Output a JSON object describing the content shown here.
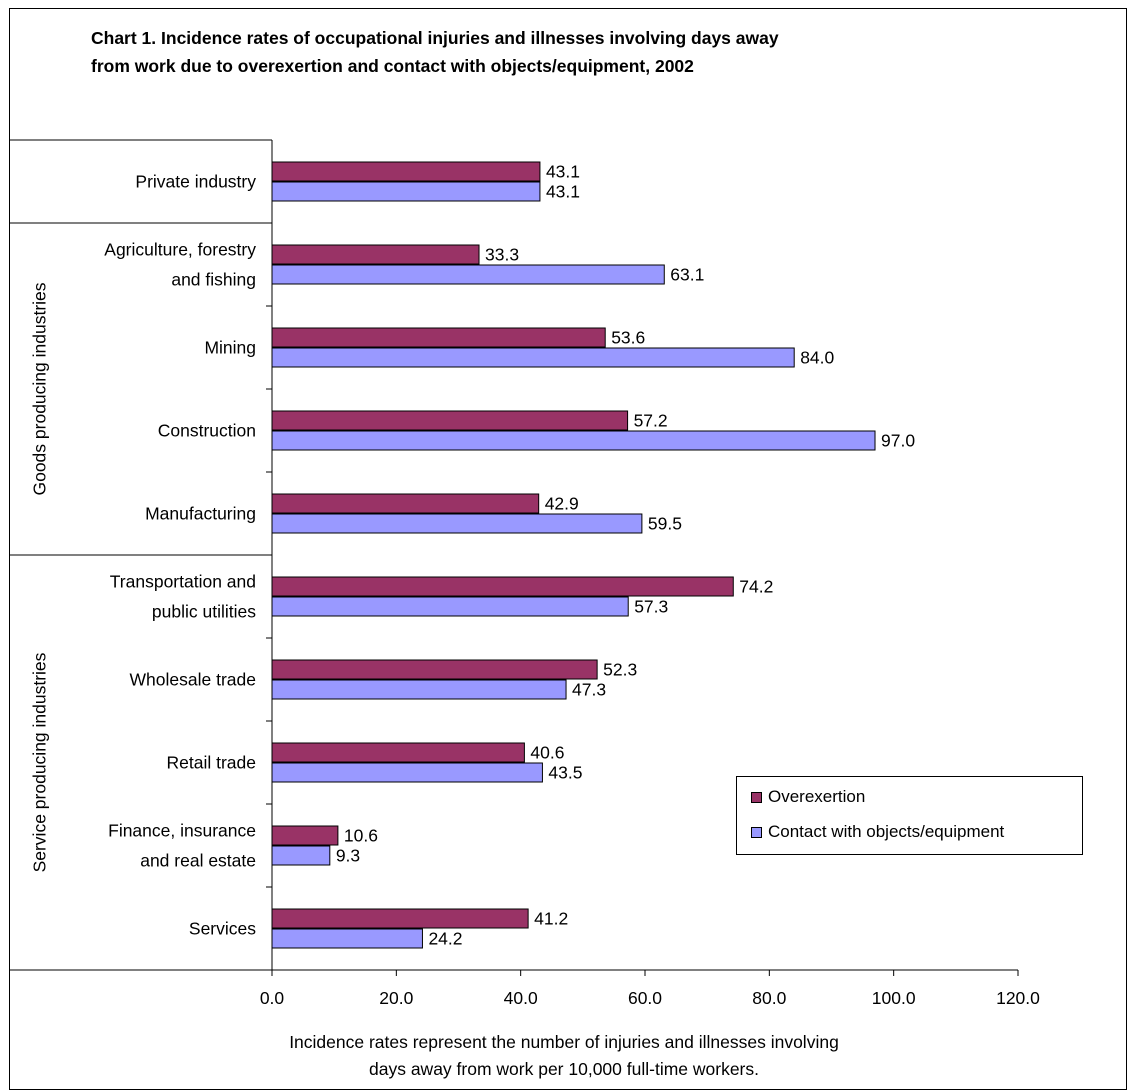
{
  "chart_data": {
    "type": "bar",
    "orientation": "horizontal",
    "title_line1": "Chart 1. Incidence rates of occupational injuries and illnesses involving days away",
    "title_line2": "from work due to overexertion and contact with objects/equipment, 2002",
    "categories": [
      "Private industry",
      "Agriculture, forestry and fishing",
      "Mining",
      "Construction",
      "Manufacturing",
      "Transportation and public utilities",
      "Wholesale trade",
      "Retail trade",
      "Finance, insurance and real estate",
      "Services"
    ],
    "category_label_lines": [
      [
        "Private industry"
      ],
      [
        "Agriculture, forestry",
        "and fishing"
      ],
      [
        "Mining"
      ],
      [
        "Construction"
      ],
      [
        "Manufacturing"
      ],
      [
        "Transportation and",
        "public utilities"
      ],
      [
        "Wholesale trade"
      ],
      [
        "Retail trade"
      ],
      [
        "Finance, insurance",
        "and real estate"
      ],
      [
        "Services"
      ]
    ],
    "groups": [
      {
        "label": "Goods producing industries",
        "categories": [
          1,
          4
        ]
      },
      {
        "label": "Service producing industries",
        "categories": [
          5,
          9
        ]
      }
    ],
    "series": [
      {
        "name": "Overexertion",
        "color": "#993366",
        "values": [
          43.1,
          33.3,
          53.6,
          57.2,
          42.9,
          74.2,
          52.3,
          40.6,
          10.6,
          41.2
        ]
      },
      {
        "name": "Contact with objects/equipment",
        "color": "#9999ff",
        "values": [
          43.1,
          63.1,
          84.0,
          97.0,
          59.5,
          57.3,
          47.3,
          43.5,
          9.3,
          24.2
        ]
      }
    ],
    "x_ticks": [
      "0.0",
      "20.0",
      "40.0",
      "60.0",
      "80.0",
      "100.0",
      "120.0"
    ],
    "xlim": [
      0,
      120
    ],
    "xlabel_line1": "Incidence rates represent the number of injuries and illnesses involving",
    "xlabel_line2": "days away from work per 10,000 full-time workers.",
    "legend_position": "right",
    "grid": false
  }
}
